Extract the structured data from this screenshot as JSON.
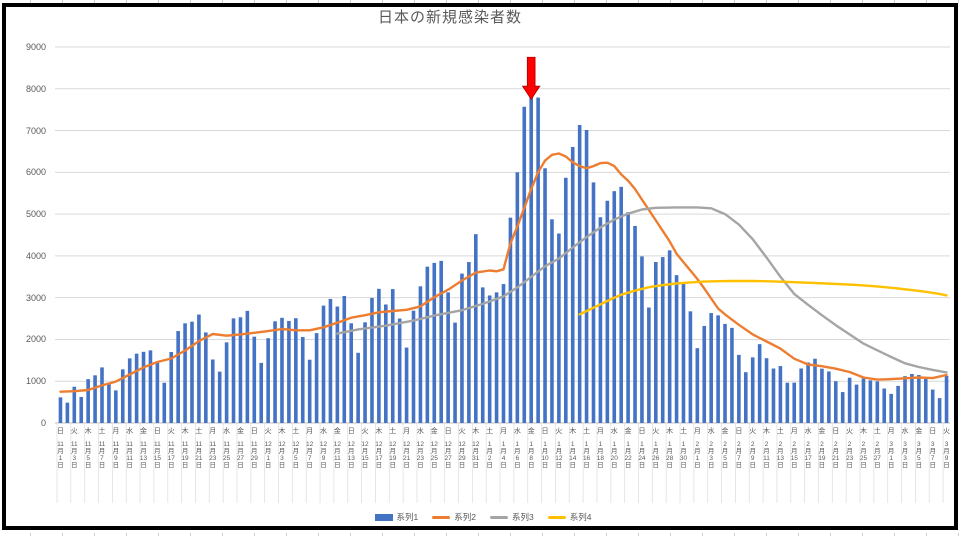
{
  "chart_data": {
    "type": "bar",
    "combo": "bar+line",
    "title": "日本の新規感染者数",
    "legend_position": "bottom",
    "background": "#ffffff",
    "frame_border_color": "#000000",
    "gridline_color": "#D9D9D9",
    "axis_text_color": "#595959",
    "y_axis": {
      "min": 0,
      "max": 9000,
      "tick_interval": 1000,
      "ticks": [
        0,
        1000,
        2000,
        3000,
        4000,
        5000,
        6000,
        7000,
        8000,
        9000
      ],
      "grid": true
    },
    "x_axis": {
      "start": "11月1日",
      "end": "3月9日",
      "days_total": 129,
      "label_every_n_days": 2,
      "labels": [
        [
          "日",
          "11月1日"
        ],
        [
          "火",
          "11月3日"
        ],
        [
          "木",
          "11月5日"
        ],
        [
          "土",
          "11月7日"
        ],
        [
          "月",
          "11月9日"
        ],
        [
          "水",
          "11月11日"
        ],
        [
          "金",
          "11月13日"
        ],
        [
          "日",
          "11月15日"
        ],
        [
          "火",
          "11月17日"
        ],
        [
          "木",
          "11月19日"
        ],
        [
          "土",
          "11月21日"
        ],
        [
          "月",
          "11月23日"
        ],
        [
          "水",
          "11月25日"
        ],
        [
          "金",
          "11月27日"
        ],
        [
          "日",
          "11月29日"
        ],
        [
          "火",
          "12月1日"
        ],
        [
          "木",
          "12月3日"
        ],
        [
          "土",
          "12月5日"
        ],
        [
          "月",
          "12月7日"
        ],
        [
          "水",
          "12月9日"
        ],
        [
          "金",
          "12月11日"
        ],
        [
          "日",
          "12月13日"
        ],
        [
          "火",
          "12月15日"
        ],
        [
          "木",
          "12月17日"
        ],
        [
          "土",
          "12月19日"
        ],
        [
          "月",
          "12月21日"
        ],
        [
          "水",
          "12月23日"
        ],
        [
          "金",
          "12月25日"
        ],
        [
          "日",
          "12月27日"
        ],
        [
          "火",
          "12月29日"
        ],
        [
          "木",
          "12月31日"
        ],
        [
          "土",
          "1月2日"
        ],
        [
          "月",
          "1月4日"
        ],
        [
          "水",
          "1月6日"
        ],
        [
          "金",
          "1月8日"
        ],
        [
          "日",
          "1月10日"
        ],
        [
          "火",
          "1月12日"
        ],
        [
          "木",
          "1月14日"
        ],
        [
          "土",
          "1月16日"
        ],
        [
          "月",
          "1月18日"
        ],
        [
          "水",
          "1月20日"
        ],
        [
          "金",
          "1月22日"
        ],
        [
          "日",
          "1月24日"
        ],
        [
          "火",
          "1月26日"
        ],
        [
          "木",
          "1月28日"
        ],
        [
          "土",
          "1月30日"
        ],
        [
          "月",
          "2月1日"
        ],
        [
          "水",
          "2月3日"
        ],
        [
          "金",
          "2月5日"
        ],
        [
          "日",
          "2月7日"
        ],
        [
          "火",
          "2月9日"
        ],
        [
          "木",
          "2月11日"
        ],
        [
          "土",
          "2月13日"
        ],
        [
          "月",
          "2月15日"
        ],
        [
          "水",
          "2月17日"
        ],
        [
          "金",
          "2月19日"
        ],
        [
          "日",
          "2月21日"
        ],
        [
          "火",
          "2月23日"
        ],
        [
          "木",
          "2月25日"
        ],
        [
          "土",
          "2月27日"
        ],
        [
          "月",
          "3月1日"
        ],
        [
          "水",
          "3月3日"
        ],
        [
          "金",
          "3月5日"
        ],
        [
          "日",
          "3月7日"
        ],
        [
          "火",
          "3月9日"
        ]
      ]
    },
    "series": [
      {
        "name": "系列1",
        "type": "bar",
        "color": "#4472C4",
        "values": [
          614,
          487,
          868,
          623,
          1050,
          1141,
          1331,
          952,
          780,
          1284,
          1547,
          1660,
          1704,
          1738,
          1441,
          963,
          1699,
          2201,
          2386,
          2425,
          2596,
          2168,
          1520,
          1229,
          1930,
          2504,
          2531,
          2684,
          2066,
          1438,
          2030,
          2434,
          2518,
          2442,
          2508,
          2058,
          1515,
          2152,
          2810,
          2968,
          2788,
          3041,
          2387,
          1680,
          2410,
          2994,
          3211,
          2837,
          3205,
          2501,
          1806,
          2688,
          3271,
          3742,
          3832,
          3881,
          3127,
          2403,
          3576,
          3852,
          4520,
          3246,
          3053,
          3127,
          3325,
          4915,
          6001,
          7570,
          7882,
          7790,
          6097,
          4876,
          4535,
          5870,
          6607,
          7133,
          7014,
          5759,
          4925,
          5320,
          5549,
          5653,
          5045,
          4717,
          3988,
          2764,
          3853,
          3971,
          4133,
          3539,
          3344,
          2673,
          1791,
          2324,
          2631,
          2576,
          2372,
          2277,
          1630,
          1216,
          1571,
          1887,
          1551,
          1304,
          1362,
          965,
          966,
          1305,
          1448,
          1538,
          1301,
          1233,
          1000,
          740,
          1083,
          919,
          1068,
          1021,
          997,
          825,
          697,
          888,
          1121,
          1173,
          1148,
          1053,
          800,
          595,
          1128
        ]
      },
      {
        "name": "系列2",
        "type": "line",
        "color": "#ED7D31",
        "width": 2.4,
        "points": [
          [
            0,
            750
          ],
          [
            2,
            760
          ],
          [
            4,
            790
          ],
          [
            6,
            900
          ],
          [
            8,
            990
          ],
          [
            10,
            1160
          ],
          [
            12,
            1330
          ],
          [
            14,
            1460
          ],
          [
            16,
            1545
          ],
          [
            18,
            1735
          ],
          [
            20,
            1960
          ],
          [
            22,
            2130
          ],
          [
            24,
            2090
          ],
          [
            26,
            2120
          ],
          [
            28,
            2160
          ],
          [
            30,
            2200
          ],
          [
            32,
            2250
          ],
          [
            34,
            2220
          ],
          [
            36,
            2220
          ],
          [
            38,
            2290
          ],
          [
            40,
            2400
          ],
          [
            42,
            2520
          ],
          [
            44,
            2580
          ],
          [
            46,
            2650
          ],
          [
            48,
            2680
          ],
          [
            50,
            2710
          ],
          [
            52,
            2790
          ],
          [
            54,
            3010
          ],
          [
            56,
            3190
          ],
          [
            58,
            3410
          ],
          [
            60,
            3600
          ],
          [
            62,
            3650
          ],
          [
            63,
            3630
          ],
          [
            64,
            3680
          ],
          [
            65,
            4300
          ],
          [
            66,
            4700
          ],
          [
            67,
            5150
          ],
          [
            68,
            5600
          ],
          [
            69,
            6000
          ],
          [
            70,
            6280
          ],
          [
            71,
            6420
          ],
          [
            72,
            6450
          ],
          [
            73,
            6380
          ],
          [
            74,
            6240
          ],
          [
            75,
            6150
          ],
          [
            76,
            6100
          ],
          [
            77,
            6150
          ],
          [
            78,
            6220
          ],
          [
            79,
            6230
          ],
          [
            80,
            6150
          ],
          [
            81,
            5950
          ],
          [
            82,
            5800
          ],
          [
            83,
            5600
          ],
          [
            84,
            5350
          ],
          [
            85,
            5100
          ],
          [
            86,
            4850
          ],
          [
            87,
            4600
          ],
          [
            88,
            4350
          ],
          [
            89,
            4050
          ],
          [
            90,
            3850
          ],
          [
            91,
            3650
          ],
          [
            92,
            3450
          ],
          [
            93,
            3220
          ],
          [
            94,
            2980
          ],
          [
            95,
            2740
          ],
          [
            96,
            2600
          ],
          [
            98,
            2350
          ],
          [
            100,
            2120
          ],
          [
            102,
            1950
          ],
          [
            104,
            1780
          ],
          [
            106,
            1540
          ],
          [
            108,
            1400
          ],
          [
            110,
            1360
          ],
          [
            112,
            1300
          ],
          [
            114,
            1220
          ],
          [
            116,
            1090
          ],
          [
            118,
            1040
          ],
          [
            120,
            1050
          ],
          [
            122,
            1070
          ],
          [
            124,
            1090
          ],
          [
            126,
            1075
          ],
          [
            128,
            1150
          ]
        ]
      },
      {
        "name": "系列3",
        "type": "line",
        "color": "#A5A5A5",
        "width": 2.4,
        "points": [
          [
            40,
            2140
          ],
          [
            43,
            2240
          ],
          [
            47,
            2330
          ],
          [
            51,
            2450
          ],
          [
            54,
            2570
          ],
          [
            58,
            2700
          ],
          [
            61,
            2850
          ],
          [
            64,
            3030
          ],
          [
            66,
            3245
          ],
          [
            68,
            3500
          ],
          [
            70,
            3750
          ],
          [
            72,
            3935
          ],
          [
            74,
            4200
          ],
          [
            76,
            4450
          ],
          [
            78,
            4680
          ],
          [
            80,
            4870
          ],
          [
            82,
            5010
          ],
          [
            84,
            5110
          ],
          [
            86,
            5150
          ],
          [
            89,
            5160
          ],
          [
            92,
            5160
          ],
          [
            94,
            5140
          ],
          [
            96,
            5000
          ],
          [
            98,
            4750
          ],
          [
            100,
            4400
          ],
          [
            102,
            3960
          ],
          [
            104,
            3500
          ],
          [
            106,
            3090
          ],
          [
            108,
            2830
          ],
          [
            110,
            2580
          ],
          [
            112,
            2340
          ],
          [
            114,
            2120
          ],
          [
            116,
            1900
          ],
          [
            118,
            1740
          ],
          [
            120,
            1580
          ],
          [
            122,
            1430
          ],
          [
            124,
            1340
          ],
          [
            126,
            1270
          ],
          [
            128,
            1210
          ]
        ]
      },
      {
        "name": "系列4",
        "type": "line",
        "color": "#FFC000",
        "width": 2.4,
        "points": [
          [
            75,
            2600
          ],
          [
            76,
            2680
          ],
          [
            77,
            2760
          ],
          [
            78,
            2840
          ],
          [
            79,
            2920
          ],
          [
            80,
            3000
          ],
          [
            81,
            3070
          ],
          [
            82,
            3120
          ],
          [
            83,
            3170
          ],
          [
            84,
            3210
          ],
          [
            85,
            3250
          ],
          [
            87,
            3300
          ],
          [
            89,
            3340
          ],
          [
            91,
            3365
          ],
          [
            93,
            3385
          ],
          [
            95,
            3395
          ],
          [
            97,
            3400
          ],
          [
            100,
            3400
          ],
          [
            103,
            3390
          ],
          [
            106,
            3370
          ],
          [
            109,
            3350
          ],
          [
            112,
            3330
          ],
          [
            115,
            3305
          ],
          [
            118,
            3270
          ],
          [
            121,
            3220
          ],
          [
            123,
            3180
          ],
          [
            125,
            3140
          ],
          [
            127,
            3090
          ],
          [
            128,
            3055
          ]
        ]
      }
    ],
    "annotation": {
      "shape": "block-arrow-down",
      "color": "#FF0000",
      "border_color": "#C00000",
      "day_index": 68,
      "points_at_date": "1月8日",
      "points_at_value": 7882,
      "tail_value": 8750,
      "tip_value": 7750
    }
  }
}
